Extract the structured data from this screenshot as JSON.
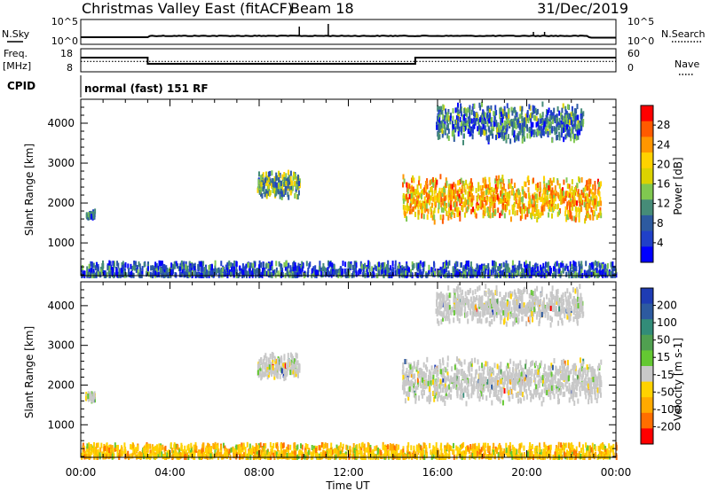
{
  "header": {
    "station": "Christmas Valley East (fitACF)",
    "beam": "Beam 18",
    "date": "31/Dec/2019"
  },
  "labels": {
    "nsky": "N.Sky",
    "nsearch": "N.Search",
    "freq": "Freq.",
    "freq_unit": "[MHz]",
    "nave": "Nave",
    "cpid": "CPID",
    "cpid_value": "normal (fast) 151 RF",
    "ylabel": "Slant Range [km]",
    "xlabel": "Time UT"
  },
  "noise_panel": {
    "left_ticks": [
      "10^5",
      "10^0"
    ],
    "right_ticks": [
      "10^5",
      "10^0"
    ]
  },
  "freq_panel": {
    "left_ticks": [
      "18",
      "8"
    ],
    "right_ticks": [
      "60",
      "0"
    ],
    "freq_levels_mhz": [
      {
        "from": "00:00",
        "to": "03:00",
        "value": 14.0
      },
      {
        "from": "03:00",
        "to": "15:00",
        "value": 10.5
      },
      {
        "from": "15:00",
        "to": "24:00",
        "value": 14.0
      }
    ],
    "nave_level": 27
  },
  "chart_data": [
    {
      "type": "heatmap",
      "panel": "power",
      "xlabel": "Time UT",
      "ylabel": "Slant Range [km]",
      "xlim_hours": [
        0,
        24
      ],
      "ylim": [
        180,
        4600
      ],
      "x_ticks": [
        "00:00",
        "04:00",
        "08:00",
        "12:00",
        "16:00",
        "20:00",
        "00:00"
      ],
      "y_ticks": [
        1000,
        2000,
        3000,
        4000
      ],
      "colorbar": {
        "label": "Power [dB]",
        "ticks": [
          "28",
          "24",
          "20",
          "16",
          "12",
          "8",
          "4"
        ],
        "colors": [
          "#ff0000",
          "#ff5a00",
          "#ff9600",
          "#ffd200",
          "#dcd200",
          "#80c850",
          "#468c78",
          "#2d5aa0",
          "#2040c8",
          "#0000ff"
        ]
      },
      "echo_regions": [
        {
          "t_start": 0.2,
          "t_end": 0.6,
          "r_min": 1600,
          "r_max": 1800,
          "typical_db": 8
        },
        {
          "t_start": 7.9,
          "t_end": 9.8,
          "r_min": 2100,
          "r_max": 2800,
          "typical_db": 14
        },
        {
          "t_start": 14.4,
          "t_end": 23.3,
          "r_min": 1500,
          "r_max": 2700,
          "typical_db": 22
        },
        {
          "t_start": 15.9,
          "t_end": 22.5,
          "r_min": 3500,
          "r_max": 4500,
          "typical_db": 10
        },
        {
          "t_start": 0.0,
          "t_end": 24.0,
          "r_min": 180,
          "r_max": 500,
          "typical_db": 8
        }
      ]
    },
    {
      "type": "heatmap",
      "panel": "velocity",
      "xlabel": "Time UT",
      "ylabel": "Slant Range [km]",
      "xlim_hours": [
        0,
        24
      ],
      "ylim": [
        180,
        4600
      ],
      "x_ticks": [
        "00:00",
        "04:00",
        "08:00",
        "12:00",
        "16:00",
        "20:00",
        "00:00"
      ],
      "y_ticks": [
        1000,
        2000,
        3000,
        4000
      ],
      "colorbar": {
        "label": "Velocity [m s-1]",
        "ticks": [
          "200",
          "100",
          "50",
          "15",
          "-15",
          "-50",
          "-100",
          "-200"
        ],
        "colors": [
          "#1e3cb4",
          "#2d5aa0",
          "#328c78",
          "#50a050",
          "#64c832",
          "#c8c8c8",
          "#ffd200",
          "#ffaa00",
          "#ff6e00",
          "#ff0000"
        ]
      },
      "echo_regions": [
        {
          "t_start": 0.2,
          "t_end": 0.6,
          "r_min": 1600,
          "r_max": 1800,
          "typical_ms": 0
        },
        {
          "t_start": 7.9,
          "t_end": 9.8,
          "r_min": 2100,
          "r_max": 2800,
          "typical_ms": 0
        },
        {
          "t_start": 14.4,
          "t_end": 23.3,
          "r_min": 1500,
          "r_max": 2700,
          "typical_ms": 0
        },
        {
          "t_start": 15.9,
          "t_end": 22.5,
          "r_min": 3500,
          "r_max": 4500,
          "typical_ms": 0
        },
        {
          "t_start": 0.0,
          "t_end": 24.0,
          "r_min": 180,
          "r_max": 500,
          "typical_ms": -40
        }
      ]
    }
  ],
  "colors": {
    "frame": "#000000",
    "background": "#ffffff"
  }
}
